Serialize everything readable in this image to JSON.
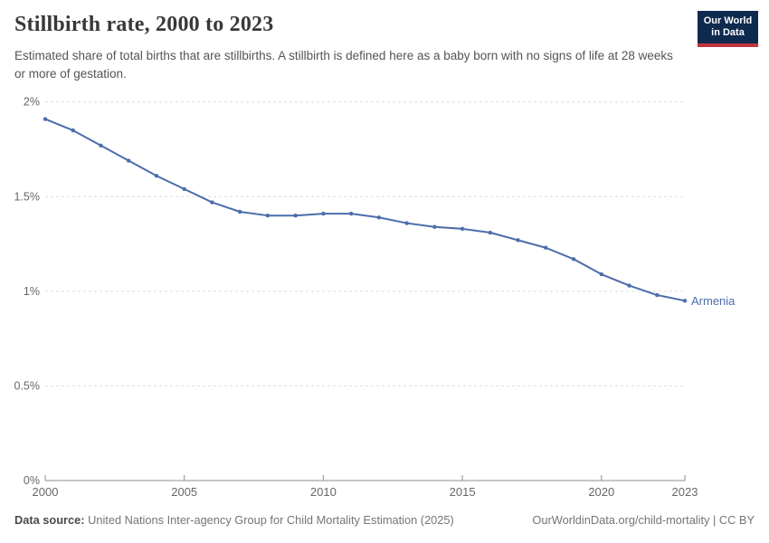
{
  "header": {
    "title": "Stillbirth rate, 2000 to 2023",
    "subtitle": "Estimated share of total births that are stillbirths. A stillbirth is defined here as a baby born with no signs of life at 28 weeks or more of gestation."
  },
  "logo": {
    "line1": "Our World",
    "line2": "in Data"
  },
  "chart_data": {
    "type": "line",
    "title": "Stillbirth rate, 2000 to 2023",
    "xlabel": "",
    "ylabel": "",
    "unit": "%",
    "x": [
      2000,
      2001,
      2002,
      2003,
      2004,
      2005,
      2006,
      2007,
      2008,
      2009,
      2010,
      2011,
      2012,
      2013,
      2014,
      2015,
      2016,
      2017,
      2018,
      2019,
      2020,
      2021,
      2022,
      2023
    ],
    "series": [
      {
        "name": "Armenia",
        "color": "#4c6dab",
        "values": [
          1.91,
          1.85,
          1.77,
          1.69,
          1.61,
          1.54,
          1.47,
          1.42,
          1.4,
          1.4,
          1.41,
          1.41,
          1.39,
          1.36,
          1.34,
          1.33,
          1.31,
          1.27,
          1.23,
          1.17,
          1.09,
          1.03,
          0.98,
          0.95
        ]
      }
    ],
    "ylim": [
      0,
      2
    ],
    "yticks": [
      {
        "value": 0,
        "label": "0%"
      },
      {
        "value": 0.5,
        "label": "0.5%"
      },
      {
        "value": 1,
        "label": "1%"
      },
      {
        "value": 1.5,
        "label": "1.5%"
      },
      {
        "value": 2,
        "label": "2%"
      }
    ],
    "xticks": [
      {
        "value": 2000,
        "label": "2000"
      },
      {
        "value": 2005,
        "label": "2005"
      },
      {
        "value": 2010,
        "label": "2010"
      },
      {
        "value": 2015,
        "label": "2015"
      },
      {
        "value": 2020,
        "label": "2020"
      },
      {
        "value": 2023,
        "label": "2023"
      }
    ],
    "grid": true,
    "legend_position": "end-of-line"
  },
  "footer": {
    "datasource_label": "Data source:",
    "datasource_text": "United Nations Inter-agency Group for Child Mortality Estimation (2025)",
    "attribution": "OurWorldinData.org/child-mortality | CC BY"
  },
  "colors": {
    "line": "#4c6dab",
    "grid": "#dcdcdc",
    "axis": "#8f8f8f",
    "tick_text": "#676767",
    "logo_bg": "#0e2a4e",
    "logo_accent": "#c0343c"
  }
}
